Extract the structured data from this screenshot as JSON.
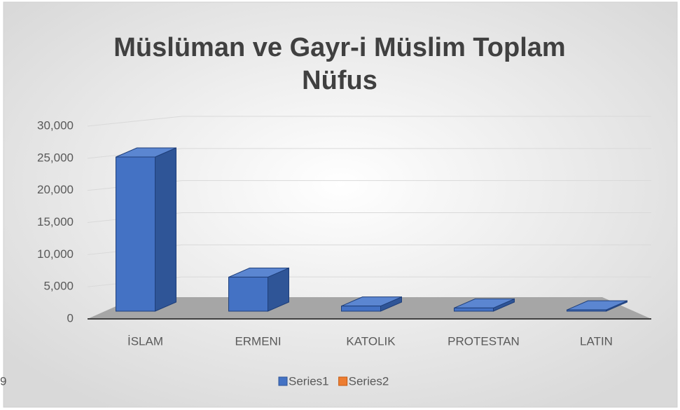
{
  "chart_data": {
    "type": "bar3d",
    "title": "Müslüman ve Gayr-i Müslim Toplam Nüfus",
    "categories": [
      "İSLAM",
      "ERMENI",
      "KATOLIK",
      "PROTESTAN",
      "LATIN"
    ],
    "series": [
      {
        "name": "Series1",
        "color": "#4472c4",
        "values": [
          24000,
          5300,
          800,
          500,
          200
        ]
      },
      {
        "name": "Series2",
        "color": "#ed7d31",
        "values": [
          null,
          null,
          null,
          null,
          null
        ]
      }
    ],
    "ylim": [
      0,
      30000
    ],
    "yticks": [
      {
        "value": 0,
        "label": "0"
      },
      {
        "value": 5000,
        "label": "5,000"
      },
      {
        "value": 10000,
        "label": "10,000"
      },
      {
        "value": 15000,
        "label": "15,000"
      },
      {
        "value": 20000,
        "label": "20,000"
      },
      {
        "value": 25000,
        "label": "25,000"
      },
      {
        "value": 30000,
        "label": "30,000"
      }
    ],
    "grid": true,
    "legend": "bottom",
    "page_fragment": "9"
  }
}
